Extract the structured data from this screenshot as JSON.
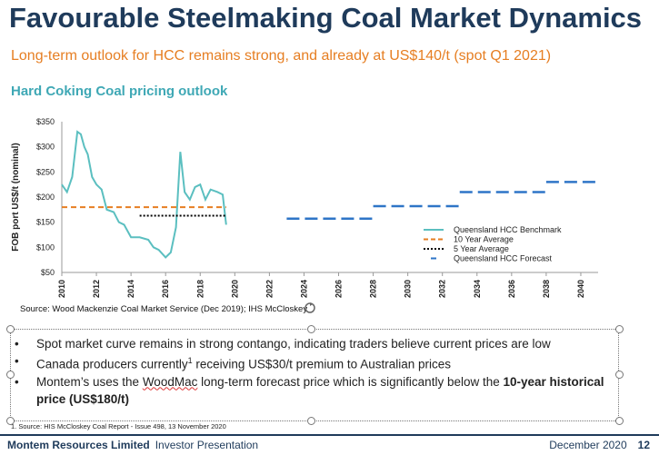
{
  "slide": {
    "title": "Favourable Steelmaking Coal Market Dynamics",
    "subtitle": "Long-term outlook for HCC remains strong, and already at US$140/t (spot Q1 2021)",
    "chart_heading": "Hard Coking Coal pricing outlook",
    "source": "Source: Wood Mackenzie Coal Market Service (Dec 2019); IHS McCloskey",
    "bullets": {
      "b1": "Spot market curve remains in strong contango, indicating traders believe current prices are low",
      "b2_pre": "Canada producers currently",
      "b2_sup": "1",
      "b2_post": " receiving US$30/t premium to Australian prices",
      "b3_pre": "Montem’s uses the ",
      "b3_link": "WoodMac",
      "b3_mid": " long-term forecast price which is significantly below the ",
      "b3_bold": "10-year historical price (US$180/t)"
    },
    "footnote": "1. Source: HIS McCloskey Coal Report  - Issue 498, 13 November 2020",
    "footer": {
      "company": "Montem Resources Limited",
      "doc": "Investor Presentation",
      "date": "December 2020",
      "page": "12"
    },
    "bullet_char": "•",
    "colors": {
      "title": "#1f3b5b",
      "subtitle": "#e67e22",
      "heading": "#3fa8b5",
      "benchmark": "#5bbfc0",
      "average10": "#e67e22",
      "average5": "#000000",
      "forecast": "#2e75c7"
    }
  },
  "chart_data": {
    "type": "line",
    "ylabel": "FOB port US$/t (nominal)",
    "xlim": [
      2010,
      2041
    ],
    "ylim": [
      50,
      350
    ],
    "xticks": [
      "2010",
      "2012",
      "2014",
      "2016",
      "2018",
      "2020",
      "2022",
      "2024",
      "2026",
      "2028",
      "2030",
      "2032",
      "2034",
      "2036",
      "2038",
      "2040"
    ],
    "yticks": [
      "$50",
      "$100",
      "$150",
      "$200",
      "$250",
      "$300",
      "$350"
    ],
    "legend": [
      "Queensland HCC Benchmark",
      "10 Year Average",
      "5 Year Average",
      "Queensland HCC Forecast"
    ],
    "series": [
      {
        "name": "Queensland HCC Benchmark",
        "x": [
          2010,
          2010.3,
          2010.6,
          2010.9,
          2011.1,
          2011.3,
          2011.5,
          2011.75,
          2012,
          2012.3,
          2012.6,
          2013,
          2013.3,
          2013.6,
          2014,
          2014.5,
          2015,
          2015.3,
          2015.6,
          2016,
          2016.3,
          2016.6,
          2016.85,
          2017.1,
          2017.4,
          2017.7,
          2018,
          2018.3,
          2018.6,
          2019,
          2019.3,
          2019.5
        ],
        "y": [
          225,
          210,
          240,
          330,
          325,
          300,
          285,
          240,
          225,
          215,
          175,
          170,
          150,
          145,
          120,
          120,
          115,
          100,
          95,
          80,
          90,
          140,
          290,
          210,
          195,
          220,
          225,
          195,
          215,
          210,
          205,
          145
        ]
      },
      {
        "name": "10 Year Average",
        "x": [
          2010,
          2019.5
        ],
        "y": [
          180,
          180
        ]
      },
      {
        "name": "5 Year Average",
        "x": [
          2014.5,
          2019.5
        ],
        "y": [
          163,
          163
        ]
      },
      {
        "name": "Queensland HCC Forecast",
        "segments": [
          {
            "x": [
              2023,
              2028
            ],
            "y": [
              157,
              157
            ]
          },
          {
            "x": [
              2028,
              2033
            ],
            "y": [
              182,
              182
            ]
          },
          {
            "x": [
              2033,
              2038
            ],
            "y": [
              210,
              210
            ]
          },
          {
            "x": [
              2038,
              2041
            ],
            "y": [
              230,
              230
            ]
          }
        ]
      }
    ]
  }
}
